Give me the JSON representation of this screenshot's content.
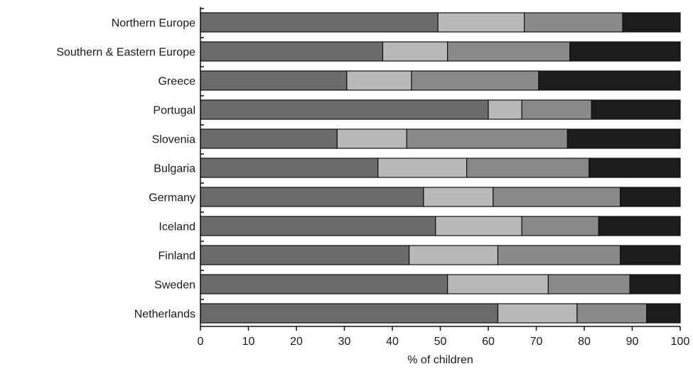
{
  "chart_data": {
    "type": "bar",
    "orientation": "horizontal",
    "stacked": true,
    "title": "",
    "xlabel": "% of children",
    "ylabel": "",
    "xlim": [
      0,
      100
    ],
    "x_ticks": [
      "0",
      "10",
      "20",
      "30",
      "40",
      "50",
      "60",
      "70",
      "80",
      "90",
      "100"
    ],
    "grid": false,
    "legend": "none",
    "categories": [
      "Northern Europe",
      "Southern & Eastern Europe",
      "Greece",
      "Portugal",
      "Slovenia",
      "Bulgaria",
      "Germany",
      "Iceland",
      "Finland",
      "Sweden",
      "Netherlands"
    ],
    "series": [
      {
        "color": "#6b6b6b",
        "values": [
          49.5,
          38,
          30.5,
          60,
          28.5,
          37,
          46.5,
          49,
          43.5,
          51.5,
          62
        ]
      },
      {
        "color": "#b9b9b9",
        "values": [
          18,
          13.5,
          13.5,
          7,
          14.5,
          18.5,
          14.5,
          18,
          18.5,
          21,
          16.5
        ]
      },
      {
        "color": "#8a8a8a",
        "values": [
          20.5,
          25.5,
          26.5,
          14.5,
          33.5,
          25.5,
          26.5,
          16,
          25.5,
          17,
          14.5
        ]
      },
      {
        "color": "#1c1c1c",
        "values": [
          12,
          23,
          29.5,
          18.5,
          23.5,
          19,
          12.5,
          17,
          12.5,
          10.5,
          7
        ]
      }
    ]
  }
}
